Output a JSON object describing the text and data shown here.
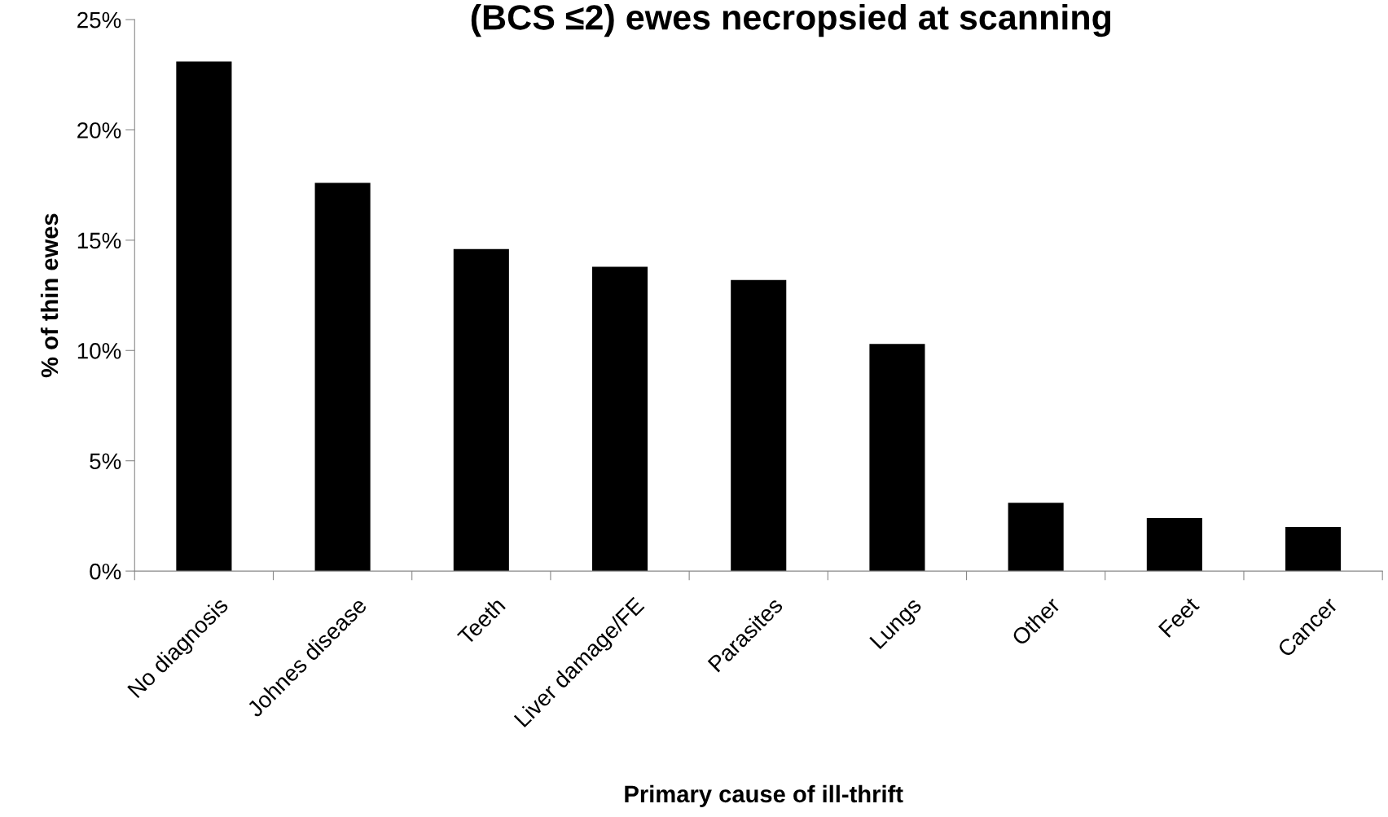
{
  "chart_data": {
    "type": "bar",
    "title": "(BCS ≤2) ewes necropsied at scanning",
    "xlabel": "Primary cause of ill-thrift",
    "ylabel": "% of thin ewes",
    "categories": [
      "No diagnosis",
      "Johnes disease",
      "Teeth",
      "Liver damage/FE",
      "Parasites",
      "Lungs",
      "Other",
      "Feet",
      "Cancer"
    ],
    "values": [
      23.1,
      17.6,
      14.6,
      13.8,
      13.2,
      10.3,
      3.1,
      2.4,
      2.0
    ],
    "color": "#000000",
    "ylim": [
      0,
      25
    ],
    "yticks": [
      {
        "value": 0,
        "label": "0%"
      },
      {
        "value": 5,
        "label": "5%"
      },
      {
        "value": 10,
        "label": "10%"
      },
      {
        "value": 15,
        "label": "15%"
      },
      {
        "value": 20,
        "label": "20%"
      },
      {
        "value": 25,
        "label": "25%"
      }
    ],
    "grid": false,
    "legend": false
  }
}
